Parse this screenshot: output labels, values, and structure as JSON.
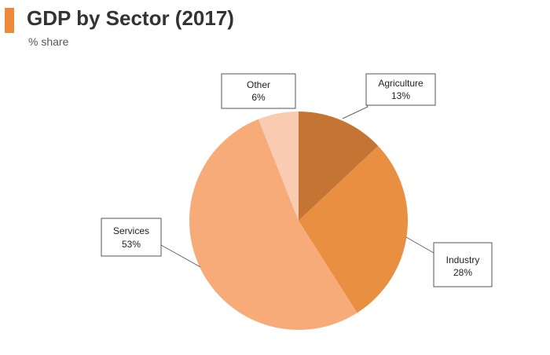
{
  "header": {
    "title": "GDP by Sector (2017)",
    "subtitle": "% share"
  },
  "colors": {
    "accent": "#ee8a3a",
    "agriculture": "#c47534",
    "industry": "#e98f41",
    "services": "#f7ab79",
    "other": "#f9ccb2"
  },
  "chart_data": {
    "type": "pie",
    "title": "GDP by Sector (2017)",
    "subtitle": "% share",
    "start": "12 o'clock",
    "direction": "clockwise",
    "slices": [
      {
        "label": "Agriculture",
        "value": 13,
        "value_label": "13%",
        "color": "#c47534"
      },
      {
        "label": "Industry",
        "value": 28,
        "value_label": "28%",
        "color": "#e98f41"
      },
      {
        "label": "Services",
        "value": 53,
        "value_label": "53%",
        "color": "#f7ab79"
      },
      {
        "label": "Other",
        "value": 6,
        "value_label": "6%",
        "color": "#f9ccb2"
      }
    ]
  }
}
